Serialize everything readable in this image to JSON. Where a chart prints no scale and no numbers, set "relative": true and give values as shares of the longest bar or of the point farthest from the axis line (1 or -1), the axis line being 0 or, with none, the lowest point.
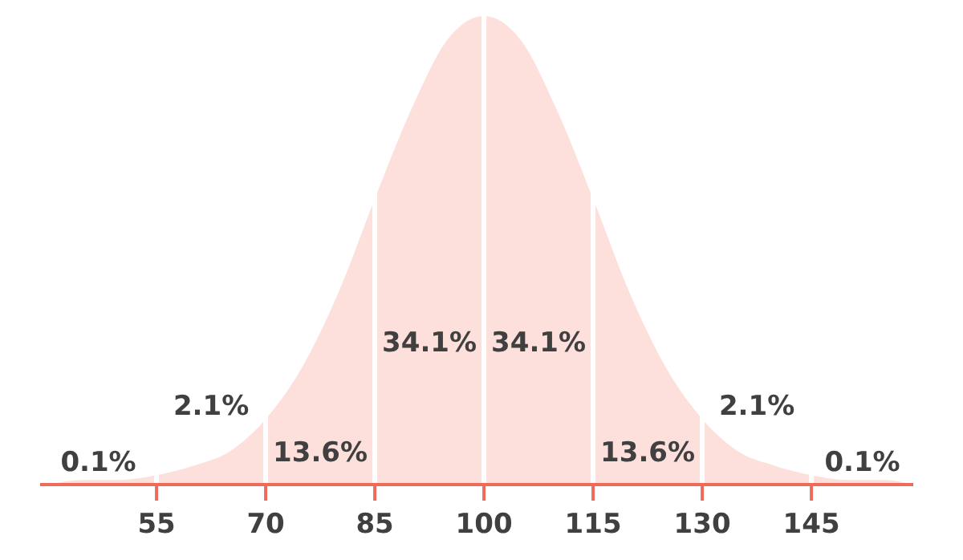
{
  "chart_data": {
    "type": "area",
    "relative": true,
    "x": [
      40,
      45,
      50,
      55,
      60,
      65,
      70,
      75,
      80,
      85,
      90,
      95,
      100,
      105,
      110,
      115,
      120,
      125,
      130,
      135,
      140,
      145,
      150,
      155,
      159
    ],
    "series": [
      {
        "color": "#fde0dc",
        "values": [
          0.0,
          0.01,
          0.01,
          0.02,
          0.04,
          0.07,
          0.14,
          0.25,
          0.41,
          0.61,
          0.8,
          0.95,
          1,
          0.95,
          0.8,
          0.61,
          0.41,
          0.25,
          0.14,
          0.07,
          0.04,
          0.02,
          0.01,
          0.01,
          0.0
        ]
      }
    ],
    "xlim": [
      39,
      159
    ],
    "xticks": [
      55,
      70,
      85,
      100,
      115,
      130,
      145
    ],
    "ref_lines": [
      {
        "axis": "x",
        "value": 55,
        "color": "#ffffff"
      },
      {
        "axis": "x",
        "value": 70,
        "color": "#ffffff"
      },
      {
        "axis": "x",
        "value": 85,
        "color": "#ffffff"
      },
      {
        "axis": "x",
        "value": 100,
        "color": "#ffffff"
      },
      {
        "axis": "x",
        "value": 115,
        "color": "#ffffff"
      },
      {
        "axis": "x",
        "value": 130,
        "color": "#ffffff"
      },
      {
        "axis": "x",
        "value": 145,
        "color": "#ffffff"
      }
    ],
    "annotations": [
      "0.1%",
      "2.1%",
      "13.6%",
      "34.1%",
      "34.1%",
      "13.6%",
      "2.1%",
      "0.1%"
    ],
    "grid": false,
    "legend": false
  }
}
